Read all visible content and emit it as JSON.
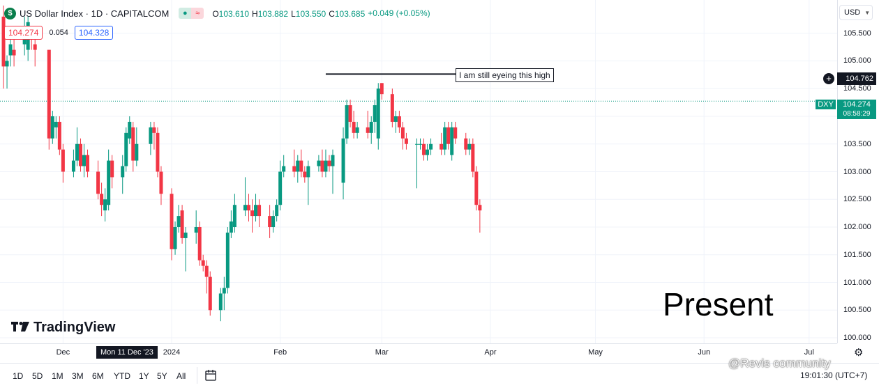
{
  "header": {
    "logo_glyph": "$",
    "symbol_line": "US Dollar Index · 1D · CAPITALCOM",
    "toggle_a": "●",
    "toggle_b": "≈",
    "ohlc": [
      {
        "label": "O",
        "value": "103.610"
      },
      {
        "label": "H",
        "value": "103.882"
      },
      {
        "label": "L",
        "value": "103.550"
      },
      {
        "label": "C",
        "value": "103.685"
      }
    ],
    "change": "+0.049 (+0.05%)"
  },
  "badges": {
    "sell_price": "104.274",
    "spread": "0.054",
    "buy_price": "104.328"
  },
  "currency_button": {
    "label": "USD"
  },
  "price_label": {
    "symbol": "DXY",
    "price": "104.274",
    "countdown": "08:58:29"
  },
  "horizontal_line_label": {
    "price": "104.762",
    "add_icon": "+"
  },
  "annotation_text": "I am still eyeing this high",
  "present_text": "Present",
  "logo_text": "TradingView",
  "crosshair_date_label": "Mon 11 Dec '23",
  "watermark": "@Revis community",
  "time_readout": "19:01:30 (UTC+7)",
  "range_buttons": [
    "1D",
    "5D",
    "1M",
    "3M",
    "6M",
    "YTD",
    "1Y",
    "5Y",
    "All"
  ],
  "colors": {
    "up": "#089981",
    "down": "#f23645",
    "grid": "#f0f3fa",
    "text": "#131722"
  },
  "chart_data": {
    "type": "candlestick",
    "symbol": "DXY",
    "timeframe": "1D",
    "y_ticks": [
      "105.500",
      "105.000",
      "104.500",
      "104.000",
      "103.500",
      "103.000",
      "102.500",
      "102.000",
      "101.500",
      "101.000",
      "100.500",
      "100.000"
    ],
    "x_ticks": [
      {
        "label": "Dec",
        "date": "2023-12-01"
      },
      {
        "label": "2024",
        "date": "2024-01-01"
      },
      {
        "label": "Feb",
        "date": "2024-02-01"
      },
      {
        "label": "Mar",
        "date": "2024-03-01"
      },
      {
        "label": "Apr",
        "date": "2024-04-01"
      },
      {
        "label": "May",
        "date": "2024-05-01"
      },
      {
        "label": "Jun",
        "date": "2024-06-01"
      },
      {
        "label": "Jul",
        "date": "2024-07-01"
      }
    ],
    "ylim": [
      99.9,
      106.1
    ],
    "xlim": [
      "2023-11-13",
      "2024-07-09"
    ],
    "current_price": 104.274,
    "resistance_line": {
      "price": 104.762,
      "from": "2024-02-14",
      "to": "2024-04-01"
    },
    "candles": [
      {
        "date": "2023-11-14",
        "o": 105.8,
        "h": 106.0,
        "l": 104.5,
        "c": 104.9
      },
      {
        "date": "2023-11-15",
        "o": 104.9,
        "h": 105.1,
        "l": 104.5,
        "c": 105.0
      },
      {
        "date": "2023-11-16",
        "o": 105.1,
        "h": 105.6,
        "l": 104.9,
        "c": 105.3
      },
      {
        "date": "2023-11-17",
        "o": 105.2,
        "h": 105.4,
        "l": 104.9,
        "c": 105.1
      },
      {
        "date": "2023-11-20",
        "o": 105.3,
        "h": 105.8,
        "l": 105.1,
        "c": 105.6
      },
      {
        "date": "2023-11-21",
        "o": 105.2,
        "h": 105.8,
        "l": 105.0,
        "c": 105.7
      },
      {
        "date": "2023-11-22",
        "o": 105.5,
        "h": 105.6,
        "l": 105.2,
        "c": 105.4
      },
      {
        "date": "2023-11-23",
        "o": 105.3,
        "h": 105.4,
        "l": 104.9,
        "c": 105.2
      },
      {
        "date": "2023-11-27",
        "o": 105.2,
        "h": 105.2,
        "l": 103.4,
        "c": 103.6
      },
      {
        "date": "2023-11-28",
        "o": 103.6,
        "h": 104.1,
        "l": 103.5,
        "c": 104.0
      },
      {
        "date": "2023-11-29",
        "o": 103.8,
        "h": 104.0,
        "l": 103.6,
        "c": 103.9
      },
      {
        "date": "2023-11-30",
        "o": 103.9,
        "h": 104.0,
        "l": 103.3,
        "c": 103.4
      },
      {
        "date": "2023-12-01",
        "o": 103.4,
        "h": 103.5,
        "l": 102.8,
        "c": 103.0
      },
      {
        "date": "2023-12-04",
        "o": 103.0,
        "h": 103.4,
        "l": 102.9,
        "c": 103.2
      },
      {
        "date": "2023-12-05",
        "o": 103.2,
        "h": 103.8,
        "l": 103.1,
        "c": 103.5
      },
      {
        "date": "2023-12-06",
        "o": 103.5,
        "h": 103.6,
        "l": 103.0,
        "c": 103.1
      },
      {
        "date": "2023-12-07",
        "o": 103.1,
        "h": 103.5,
        "l": 102.9,
        "c": 103.3
      },
      {
        "date": "2023-12-08",
        "o": 103.3,
        "h": 103.4,
        "l": 102.9,
        "c": 103.0
      },
      {
        "date": "2023-12-11",
        "o": 103.0,
        "h": 103.2,
        "l": 102.5,
        "c": 102.6
      },
      {
        "date": "2023-12-12",
        "o": 102.6,
        "h": 102.8,
        "l": 102.2,
        "c": 102.4
      },
      {
        "date": "2023-12-13",
        "o": 102.3,
        "h": 102.7,
        "l": 102.1,
        "c": 102.5
      },
      {
        "date": "2023-12-14",
        "o": 102.4,
        "h": 103.4,
        "l": 102.3,
        "c": 103.2
      },
      {
        "date": "2023-12-15",
        "o": 103.2,
        "h": 103.3,
        "l": 102.7,
        "c": 102.9
      },
      {
        "date": "2023-12-18",
        "o": 102.9,
        "h": 103.3,
        "l": 102.6,
        "c": 103.1
      },
      {
        "date": "2023-12-19",
        "o": 103.1,
        "h": 103.8,
        "l": 103.0,
        "c": 103.7
      },
      {
        "date": "2023-12-20",
        "o": 103.6,
        "h": 104.0,
        "l": 103.5,
        "c": 103.9
      },
      {
        "date": "2023-12-21",
        "o": 103.8,
        "h": 103.9,
        "l": 103.0,
        "c": 103.2
      },
      {
        "date": "2023-12-22",
        "o": 103.2,
        "h": 103.8,
        "l": 103.1,
        "c": 103.5
      },
      {
        "date": "2023-12-26",
        "o": 103.5,
        "h": 103.9,
        "l": 103.3,
        "c": 103.8
      },
      {
        "date": "2023-12-27",
        "o": 103.8,
        "h": 103.9,
        "l": 103.4,
        "c": 103.7
      },
      {
        "date": "2023-12-28",
        "o": 103.7,
        "h": 103.8,
        "l": 102.9,
        "c": 103.0
      },
      {
        "date": "2023-12-29",
        "o": 103.0,
        "h": 103.1,
        "l": 102.4,
        "c": 102.6
      },
      {
        "date": "2024-01-01",
        "o": 102.6,
        "h": 102.7,
        "l": 101.4,
        "c": 101.6
      },
      {
        "date": "2024-01-02",
        "o": 101.6,
        "h": 102.1,
        "l": 101.5,
        "c": 102.0
      },
      {
        "date": "2024-01-03",
        "o": 102.0,
        "h": 102.4,
        "l": 101.9,
        "c": 102.2
      },
      {
        "date": "2024-01-04",
        "o": 102.3,
        "h": 102.4,
        "l": 101.7,
        "c": 101.8
      },
      {
        "date": "2024-01-05",
        "o": 101.8,
        "h": 102.0,
        "l": 101.2,
        "c": 101.9
      },
      {
        "date": "2024-01-08",
        "o": 101.9,
        "h": 102.3,
        "l": 101.7,
        "c": 102.0
      },
      {
        "date": "2024-01-09",
        "o": 102.0,
        "h": 102.1,
        "l": 101.3,
        "c": 101.4
      },
      {
        "date": "2024-01-10",
        "o": 101.4,
        "h": 101.5,
        "l": 101.2,
        "c": 101.3
      },
      {
        "date": "2024-01-11",
        "o": 101.3,
        "h": 101.4,
        "l": 100.8,
        "c": 101.1
      },
      {
        "date": "2024-01-12",
        "o": 101.1,
        "h": 101.2,
        "l": 100.4,
        "c": 100.5
      },
      {
        "date": "2024-01-15",
        "o": 100.5,
        "h": 100.9,
        "l": 100.3,
        "c": 100.8
      },
      {
        "date": "2024-01-16",
        "o": 100.8,
        "h": 101.1,
        "l": 100.5,
        "c": 100.9
      },
      {
        "date": "2024-01-17",
        "o": 100.9,
        "h": 102.0,
        "l": 100.8,
        "c": 101.9
      },
      {
        "date": "2024-01-18",
        "o": 101.9,
        "h": 102.3,
        "l": 101.8,
        "c": 102.1
      },
      {
        "date": "2024-01-19",
        "o": 102.0,
        "h": 102.6,
        "l": 101.9,
        "c": 102.4
      },
      {
        "date": "2024-01-22",
        "o": 102.3,
        "h": 102.9,
        "l": 102.2,
        "c": 102.4
      },
      {
        "date": "2024-01-23",
        "o": 102.4,
        "h": 102.6,
        "l": 102.1,
        "c": 102.3
      },
      {
        "date": "2024-01-24",
        "o": 102.3,
        "h": 102.5,
        "l": 101.9,
        "c": 102.2
      },
      {
        "date": "2024-01-25",
        "o": 102.2,
        "h": 102.6,
        "l": 102.1,
        "c": 102.4
      },
      {
        "date": "2024-01-26",
        "o": 102.4,
        "h": 102.5,
        "l": 102.0,
        "c": 102.2
      },
      {
        "date": "2024-01-29",
        "o": 102.2,
        "h": 102.4,
        "l": 101.8,
        "c": 102.0
      },
      {
        "date": "2024-01-30",
        "o": 102.0,
        "h": 102.3,
        "l": 101.9,
        "c": 102.2
      },
      {
        "date": "2024-01-31",
        "o": 102.2,
        "h": 102.5,
        "l": 102.1,
        "c": 102.4
      },
      {
        "date": "2024-02-01",
        "o": 102.4,
        "h": 103.2,
        "l": 102.3,
        "c": 103.0
      },
      {
        "date": "2024-02-02",
        "o": 103.0,
        "h": 103.3,
        "l": 102.9,
        "c": 103.1
      },
      {
        "date": "2024-02-05",
        "o": 103.1,
        "h": 103.4,
        "l": 102.9,
        "c": 103.0
      },
      {
        "date": "2024-02-06",
        "o": 103.0,
        "h": 103.3,
        "l": 102.8,
        "c": 103.2
      },
      {
        "date": "2024-02-07",
        "o": 103.2,
        "h": 103.4,
        "l": 102.9,
        "c": 103.0
      },
      {
        "date": "2024-02-08",
        "o": 103.0,
        "h": 103.1,
        "l": 102.8,
        "c": 102.9
      },
      {
        "date": "2024-02-09",
        "o": 102.9,
        "h": 103.2,
        "l": 102.4,
        "c": 103.1
      },
      {
        "date": "2024-02-12",
        "o": 103.1,
        "h": 103.3,
        "l": 103.0,
        "c": 103.2
      },
      {
        "date": "2024-02-13",
        "o": 103.2,
        "h": 103.4,
        "l": 102.9,
        "c": 103.0
      },
      {
        "date": "2024-02-14",
        "o": 103.0,
        "h": 103.4,
        "l": 102.9,
        "c": 103.2
      },
      {
        "date": "2024-02-15",
        "o": 103.2,
        "h": 103.3,
        "l": 103.0,
        "c": 103.1
      },
      {
        "date": "2024-02-16",
        "o": 103.1,
        "h": 103.4,
        "l": 102.6,
        "c": 103.3
      },
      {
        "date": "2024-02-19",
        "o": 102.8,
        "h": 103.8,
        "l": 102.5,
        "c": 103.6
      },
      {
        "date": "2024-02-20",
        "o": 103.6,
        "h": 104.3,
        "l": 103.5,
        "c": 104.2
      },
      {
        "date": "2024-02-21",
        "o": 104.2,
        "h": 104.3,
        "l": 103.8,
        "c": 103.9
      },
      {
        "date": "2024-02-22",
        "o": 103.9,
        "h": 104.1,
        "l": 103.6,
        "c": 103.7
      },
      {
        "date": "2024-02-23",
        "o": 103.7,
        "h": 103.9,
        "l": 103.6,
        "c": 103.8
      },
      {
        "date": "2024-02-26",
        "o": 103.8,
        "h": 104.1,
        "l": 103.6,
        "c": 103.7
      },
      {
        "date": "2024-02-27",
        "o": 103.7,
        "h": 104.0,
        "l": 103.5,
        "c": 103.9
      },
      {
        "date": "2024-02-28",
        "o": 103.9,
        "h": 104.3,
        "l": 103.7,
        "c": 104.2
      },
      {
        "date": "2024-02-29",
        "o": 103.6,
        "h": 104.6,
        "l": 103.4,
        "c": 104.5
      },
      {
        "date": "2024-03-01",
        "o": 104.6,
        "h": 104.6,
        "l": 104.3,
        "c": 104.4
      },
      {
        "date": "2024-03-04",
        "o": 104.4,
        "h": 104.5,
        "l": 103.8,
        "c": 103.9
      },
      {
        "date": "2024-03-05",
        "o": 103.9,
        "h": 104.1,
        "l": 103.7,
        "c": 104.0
      },
      {
        "date": "2024-03-06",
        "o": 104.0,
        "h": 104.1,
        "l": 103.7,
        "c": 103.8
      },
      {
        "date": "2024-03-07",
        "o": 103.8,
        "h": 103.9,
        "l": 103.4,
        "c": 103.6
      },
      {
        "date": "2024-03-08",
        "o": 103.6,
        "h": 103.7,
        "l": 103.4,
        "c": 103.5
      },
      {
        "date": "2024-03-11",
        "o": 103.5,
        "h": 103.6,
        "l": 102.7,
        "c": 103.5
      },
      {
        "date": "2024-03-12",
        "o": 103.5,
        "h": 103.6,
        "l": 103.4,
        "c": 103.5
      },
      {
        "date": "2024-03-13",
        "o": 103.5,
        "h": 103.6,
        "l": 103.2,
        "c": 103.3
      },
      {
        "date": "2024-03-14",
        "o": 103.3,
        "h": 103.5,
        "l": 103.2,
        "c": 103.4
      },
      {
        "date": "2024-03-15",
        "o": 103.4,
        "h": 103.6,
        "l": 103.3,
        "c": 103.5
      },
      {
        "date": "2024-03-18",
        "o": 103.5,
        "h": 103.7,
        "l": 103.3,
        "c": 103.4
      },
      {
        "date": "2024-03-19",
        "o": 103.4,
        "h": 103.9,
        "l": 103.3,
        "c": 103.8
      },
      {
        "date": "2024-03-20",
        "o": 103.8,
        "h": 103.9,
        "l": 103.4,
        "c": 103.5
      },
      {
        "date": "2024-03-21",
        "o": 103.3,
        "h": 103.9,
        "l": 103.2,
        "c": 103.8
      },
      {
        "date": "2024-03-22",
        "o": 103.8,
        "h": 103.9,
        "l": 103.5,
        "c": 103.6
      },
      {
        "date": "2024-03-25",
        "o": 103.6,
        "h": 103.7,
        "l": 103.3,
        "c": 103.4
      },
      {
        "date": "2024-03-26",
        "o": 103.4,
        "h": 103.6,
        "l": 103.3,
        "c": 103.5
      },
      {
        "date": "2024-03-27",
        "o": 103.5,
        "h": 103.6,
        "l": 102.9,
        "c": 103.0
      },
      {
        "date": "2024-03-28",
        "o": 103.0,
        "h": 103.1,
        "l": 102.3,
        "c": 102.4
      },
      {
        "date": "2024-03-29",
        "o": 102.4,
        "h": 102.5,
        "l": 101.9,
        "c": 102.3
      }
    ]
  }
}
